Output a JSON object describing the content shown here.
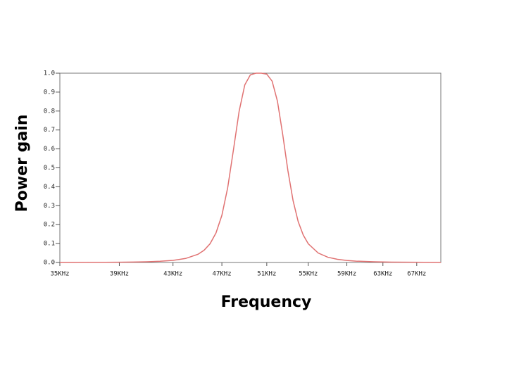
{
  "chart_data": {
    "type": "line",
    "x_label": "Frequency",
    "y_label": "Power gain",
    "x": [
      35,
      36,
      37,
      38,
      39,
      40,
      41,
      42,
      43,
      44,
      45,
      45.5,
      46,
      46.5,
      47,
      47.5,
      48,
      48.5,
      49,
      49.5,
      50,
      50.5,
      51,
      51.5,
      52,
      52.5,
      53,
      53.5,
      54,
      54.5,
      55,
      56,
      57,
      58,
      59,
      60,
      62,
      64,
      66,
      68,
      70
    ],
    "series": [
      {
        "color": "#e07272",
        "values": [
          0.0004,
          0.0005,
          0.0007,
          0.0011,
          0.0016,
          0.0025,
          0.0039,
          0.0065,
          0.0113,
          0.0212,
          0.0434,
          0.0646,
          0.0988,
          0.156,
          0.249,
          0.395,
          0.595,
          0.799,
          0.938,
          0.991,
          1.0,
          1.0,
          0.995,
          0.958,
          0.852,
          0.677,
          0.485,
          0.327,
          0.216,
          0.145,
          0.099,
          0.05,
          0.0277,
          0.0166,
          0.0105,
          0.0071,
          0.0036,
          0.002,
          0.0012,
          0.0008,
          0.0005
        ]
      }
    ],
    "xscale": "log",
    "xlim": [
      35,
      70
    ],
    "xticks": [
      {
        "value": 35,
        "label": "35KHz"
      },
      {
        "value": 39,
        "label": "39KHz"
      },
      {
        "value": 43,
        "label": "43KHz"
      },
      {
        "value": 47,
        "label": "47KHz"
      },
      {
        "value": 51,
        "label": "51KHz"
      },
      {
        "value": 55,
        "label": "55KHz"
      },
      {
        "value": 59,
        "label": "59KHz"
      },
      {
        "value": 63,
        "label": "63KHz"
      },
      {
        "value": 67,
        "label": "67KHz"
      }
    ],
    "ylim": [
      0,
      1
    ],
    "yticks": [
      {
        "value": 0,
        "label": "0.0"
      },
      0.1,
      0.2,
      0.3,
      0.4,
      0.5,
      0.6,
      0.7,
      0.8,
      0.9,
      {
        "value": 1,
        "label": "1.0"
      }
    ],
    "grid": false
  }
}
